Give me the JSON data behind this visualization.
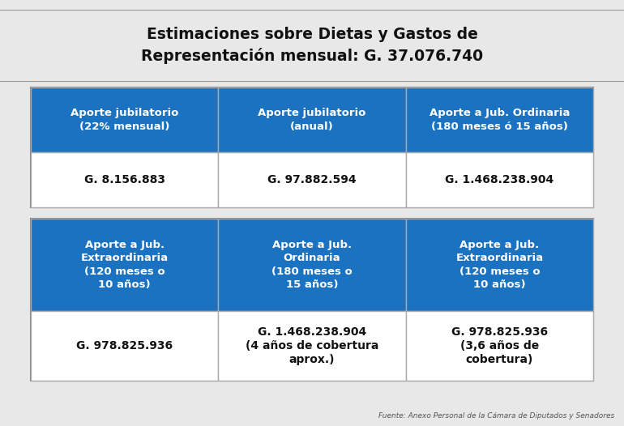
{
  "title_line1": "Estimaciones sobre Dietas y Gastos de",
  "title_line2": "Representación mensual: G. 37.076.740",
  "background_color": "#e8e8e8",
  "table_bg": "#ffffff",
  "header_color": "#1a72c0",
  "header_text_color": "#ffffff",
  "value_text_color": "#111111",
  "border_color": "#aaaaaa",
  "outer_border_color": "#888888",
  "source_text": "Fuente: Anexo Personal de la Cámara de Diputados y Senadores",
  "table1": {
    "headers": [
      "Aporte jubilatorio\n(22% mensual)",
      "Aporte jubilatorio\n(anual)",
      "Aporte a Jub. Ordinaria\n(180 meses ó 15 años)"
    ],
    "values": [
      "G. 8.156.883",
      "G. 97.882.594",
      "G. 1.468.238.904"
    ]
  },
  "table2": {
    "headers": [
      "Aporte a Jub.\nExtraordinaria\n(120 meses o\n10 años)",
      "Aporte a Jub.\nOrdinaria\n(180 meses o\n15 años)",
      "Aporte a Jub.\nExtraordinaria\n(120 meses o\n10 años)"
    ],
    "values": [
      "G. 978.825.936",
      "G. 1.468.238.904\n(4 años de cobertura\naprox.)",
      "G. 978.825.936\n(3,6 años de\ncobertura)"
    ]
  }
}
